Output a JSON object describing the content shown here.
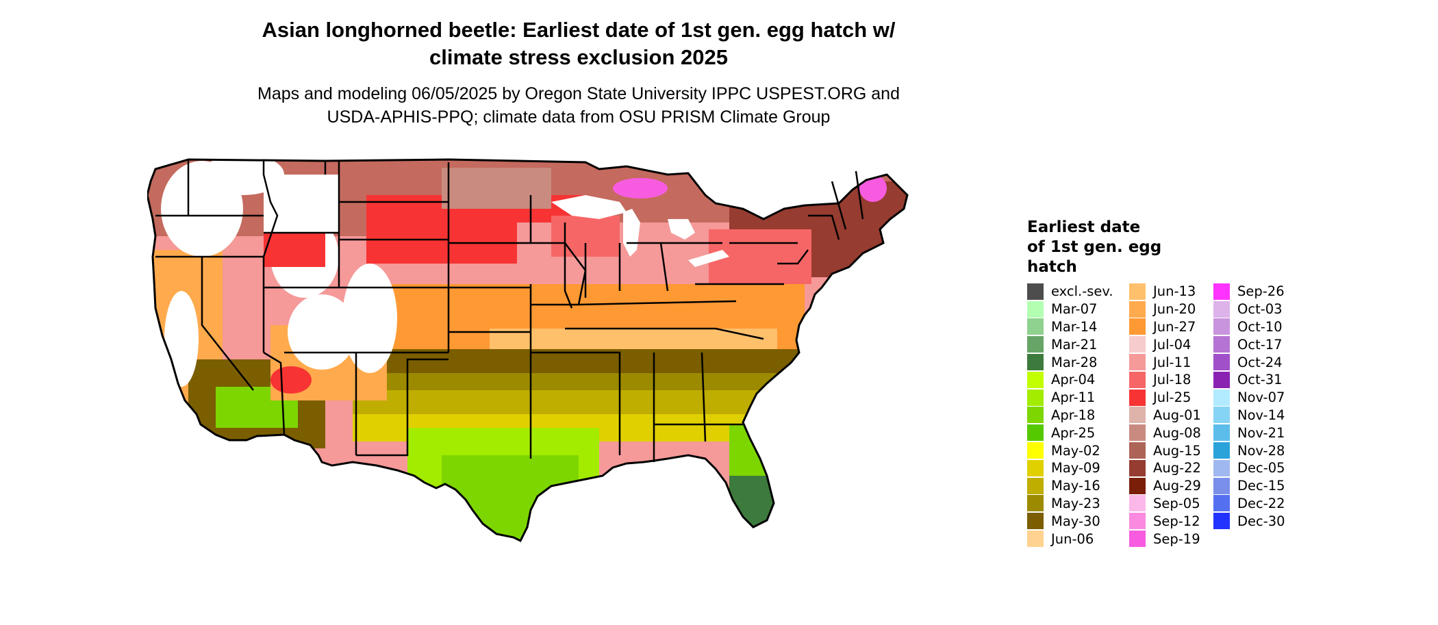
{
  "title_line1": "Asian longhorned beetle: Earliest date of 1st gen. egg hatch w/",
  "title_line2": "climate stress exclusion 2025",
  "subtitle_line1": "Maps and modeling 06/05/2025 by Oregon State University IPPC USPEST.ORG and",
  "subtitle_line2": "USDA-APHIS-PPQ; climate data from OSU PRISM Climate Group",
  "legend": {
    "title_line1": "Earliest date",
    "title_line2": "of 1st gen. egg",
    "title_line3": "hatch",
    "columns": [
      [
        {
          "label": "excl.-sev.",
          "color": "#4d4d4d"
        },
        {
          "label": "Mar-07",
          "color": "#b2ffb2"
        },
        {
          "label": "Mar-14",
          "color": "#8fd18f"
        },
        {
          "label": "Mar-21",
          "color": "#67a567"
        },
        {
          "label": "Mar-28",
          "color": "#3d7a3d"
        },
        {
          "label": "Apr-04",
          "color": "#c2ff00"
        },
        {
          "label": "Apr-11",
          "color": "#a3ec00"
        },
        {
          "label": "Apr-18",
          "color": "#7dd600"
        },
        {
          "label": "Apr-25",
          "color": "#55c800"
        },
        {
          "label": "May-02",
          "color": "#ffff00"
        },
        {
          "label": "May-09",
          "color": "#e0d000"
        },
        {
          "label": "May-16",
          "color": "#bfad00"
        },
        {
          "label": "May-23",
          "color": "#9c8a00"
        },
        {
          "label": "May-30",
          "color": "#7a5e00"
        },
        {
          "label": "Jun-06",
          "color": "#ffd38f"
        }
      ],
      [
        {
          "label": "Jun-13",
          "color": "#ffc06b"
        },
        {
          "label": "Jun-20",
          "color": "#ffaa4d"
        },
        {
          "label": "Jun-27",
          "color": "#ff9933"
        },
        {
          "label": "Jul-04",
          "color": "#f7cccc"
        },
        {
          "label": "Jul-11",
          "color": "#f59999"
        },
        {
          "label": "Jul-18",
          "color": "#f76666"
        },
        {
          "label": "Jul-25",
          "color": "#f73333"
        },
        {
          "label": "Aug-01",
          "color": "#deb3aa"
        },
        {
          "label": "Aug-08",
          "color": "#c98b80"
        },
        {
          "label": "Aug-15",
          "color": "#ad6457"
        },
        {
          "label": "Aug-22",
          "color": "#963c30"
        },
        {
          "label": "Aug-29",
          "color": "#7a1e0a"
        },
        {
          "label": "Sep-05",
          "color": "#fbb8e8"
        },
        {
          "label": "Sep-12",
          "color": "#fa8ae0"
        },
        {
          "label": "Sep-19",
          "color": "#f75ce0"
        }
      ],
      [
        {
          "label": "Sep-26",
          "color": "#ff33ff"
        },
        {
          "label": "Oct-03",
          "color": "#ddb3ea"
        },
        {
          "label": "Oct-10",
          "color": "#c994de"
        },
        {
          "label": "Oct-17",
          "color": "#b574d4"
        },
        {
          "label": "Oct-24",
          "color": "#a050c8"
        },
        {
          "label": "Oct-31",
          "color": "#8a22b2"
        },
        {
          "label": "Nov-07",
          "color": "#b2ebff"
        },
        {
          "label": "Nov-14",
          "color": "#86d4f5"
        },
        {
          "label": "Nov-21",
          "color": "#5cbdeb"
        },
        {
          "label": "Nov-28",
          "color": "#2aa3db"
        },
        {
          "label": "Dec-05",
          "color": "#a0b8f0"
        },
        {
          "label": "Dec-15",
          "color": "#7a8fea"
        },
        {
          "label": "Dec-22",
          "color": "#5470f0"
        },
        {
          "label": "Dec-30",
          "color": "#2233ff"
        }
      ]
    ]
  },
  "map_colors": {
    "outline": "#000000",
    "north_west": "#c46a5e",
    "north_plains": "#f73333",
    "central": "#f59999",
    "mid_south": "#ff9933",
    "south": "#bfad00",
    "gulf": "#7dd600",
    "florida_tip": "#3d7a3d",
    "mountain_snow": "#ffffff",
    "great_lakes": "#ffffff",
    "northeast": "#963c30"
  }
}
